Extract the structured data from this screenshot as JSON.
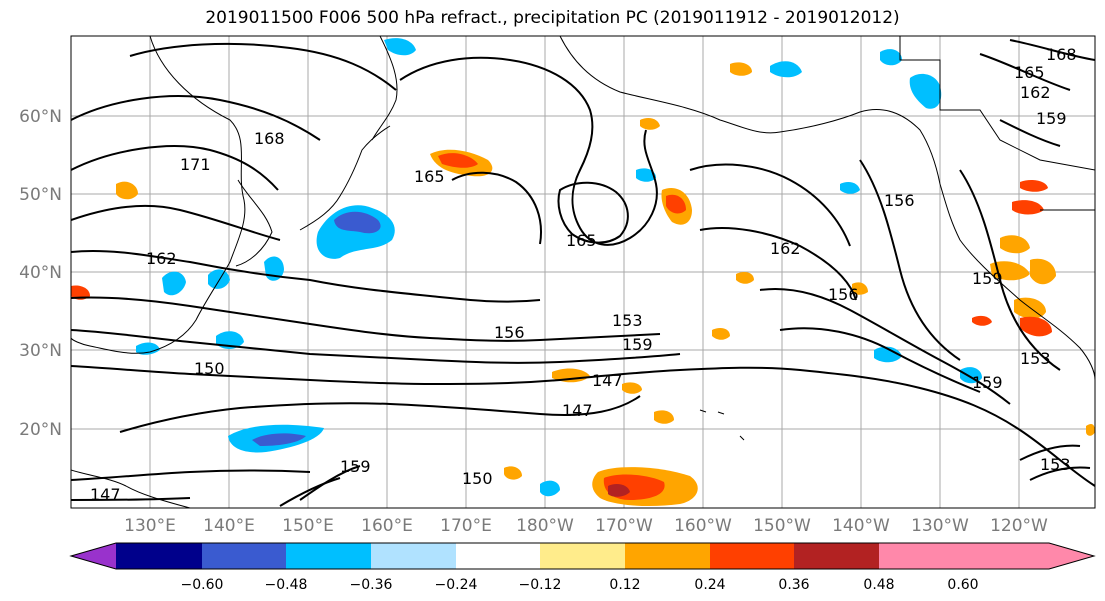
{
  "title": "2019011500 F006 500 hPa refract., precipitation PC (2019011912 - 2019012012)",
  "map": {
    "lat_labels": [
      "60°N",
      "50°N",
      "40°N",
      "30°N",
      "20°N"
    ],
    "lon_labels": [
      "130°E",
      "140°E",
      "150°E",
      "160°E",
      "170°E",
      "180°W",
      "170°W",
      "160°W",
      "150°W",
      "140°W",
      "130°W",
      "120°W"
    ],
    "contour_labels": [
      "171",
      "168",
      "165",
      "165",
      "162",
      "162",
      "156",
      "156",
      "153",
      "159",
      "150",
      "147",
      "147",
      "147",
      "150",
      "159",
      "156",
      "159",
      "153",
      "159",
      "153",
      "168",
      "165",
      "162",
      "159"
    ]
  },
  "colorbar": {
    "ticks": [
      "−0.60",
      "−0.48",
      "−0.36",
      "−0.24",
      "−0.12",
      "0.12",
      "0.24",
      "0.36",
      "0.48",
      "0.60"
    ],
    "colors": [
      "#9932cc",
      "#00008b",
      "#3a5bd0",
      "#00bfff",
      "#b0e2ff",
      "#ffffff",
      "#ffec8b",
      "#ffa500",
      "#ff4000",
      "#b22222",
      "#ff88aa"
    ]
  }
}
